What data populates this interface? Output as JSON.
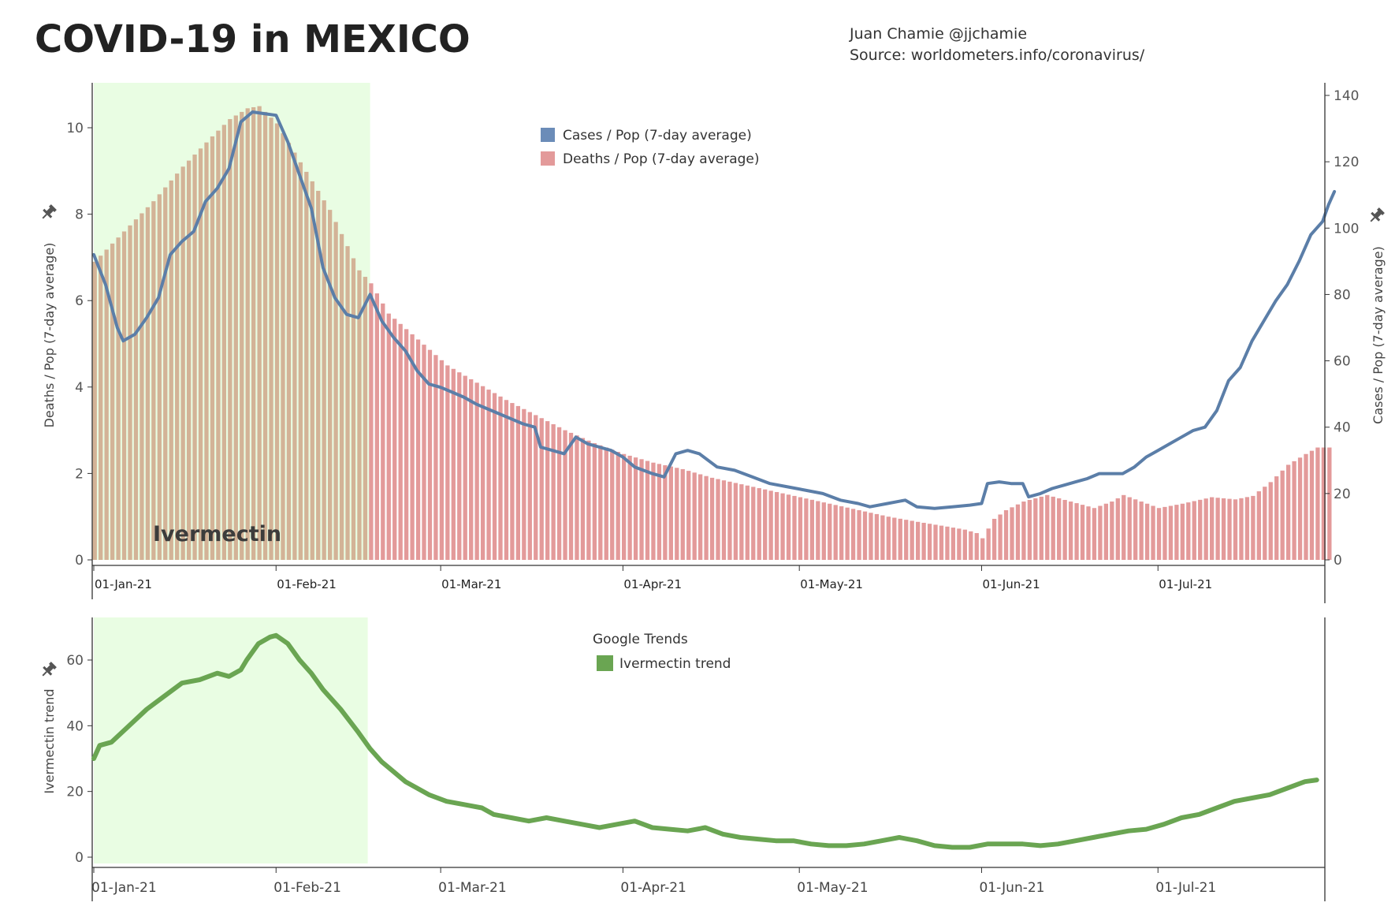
{
  "title": "COVID-19 in MEXICO",
  "credit": {
    "author": "Juan Chamie @jjchamie",
    "source": "Source: worldometers.info/coronavirus/"
  },
  "chart_data": [
    {
      "type": "bar+line",
      "name": "top-panel",
      "x_start": "2021-01-01",
      "x_end": "2021-07-31",
      "x_tick_labels": [
        "01-Jan-21",
        "01-Feb-21",
        "01-Mar-21",
        "01-Apr-21",
        "01-May-21",
        "01-Jun-21",
        "01-Jul-21"
      ],
      "x_tick_days": [
        0,
        31,
        59,
        90,
        120,
        151,
        181
      ],
      "highlight": {
        "label": "Ivermectin",
        "start_day": 0,
        "end_day": 47,
        "color": "#e9fde3"
      },
      "y_left": {
        "label": "Deaths / Pop (7-day average)",
        "range": [
          0,
          11
        ],
        "ticks": [
          0,
          2,
          4,
          6,
          8,
          10
        ]
      },
      "y_right": {
        "label": "Cases / Pop (7-day average)",
        "range": [
          0,
          142.5
        ],
        "ticks": [
          0,
          20,
          40,
          60,
          80,
          100,
          120,
          140
        ]
      },
      "legend": [
        {
          "label": "Cases / Pop (7-day average)",
          "color": "#6b8cb8"
        },
        {
          "label": "Deaths / Pop (7-day average)",
          "color": "#e39a9a"
        }
      ],
      "series": [
        {
          "name": "Deaths / Pop (7-day average)",
          "axis": "left",
          "type": "bar",
          "color": "#e39a9a",
          "highlight_color": "#d3b397",
          "points": [
            [
              0,
              6.9
            ],
            [
              5,
              7.6
            ],
            [
              10,
              8.3
            ],
            [
              15,
              9.1
            ],
            [
              20,
              9.8
            ],
            [
              23,
              10.2
            ],
            [
              26,
              10.45
            ],
            [
              28,
              10.5
            ],
            [
              31,
              10.1
            ],
            [
              35,
              9.2
            ],
            [
              40,
              8.1
            ],
            [
              45,
              6.7
            ],
            [
              47,
              6.4
            ],
            [
              50,
              5.7
            ],
            [
              55,
              5.1
            ],
            [
              60,
              4.5
            ],
            [
              65,
              4.1
            ],
            [
              70,
              3.7
            ],
            [
              75,
              3.35
            ],
            [
              80,
              3.0
            ],
            [
              85,
              2.7
            ],
            [
              90,
              2.45
            ],
            [
              95,
              2.25
            ],
            [
              100,
              2.1
            ],
            [
              105,
              1.9
            ],
            [
              110,
              1.75
            ],
            [
              115,
              1.6
            ],
            [
              120,
              1.45
            ],
            [
              125,
              1.3
            ],
            [
              130,
              1.15
            ],
            [
              135,
              1.0
            ],
            [
              140,
              0.88
            ],
            [
              145,
              0.77
            ],
            [
              148,
              0.7
            ],
            [
              150,
              0.62
            ],
            [
              151,
              0.5
            ],
            [
              153,
              0.95
            ],
            [
              155,
              1.15
            ],
            [
              158,
              1.35
            ],
            [
              162,
              1.5
            ],
            [
              166,
              1.35
            ],
            [
              170,
              1.2
            ],
            [
              173,
              1.35
            ],
            [
              175,
              1.5
            ],
            [
              178,
              1.35
            ],
            [
              181,
              1.2
            ],
            [
              185,
              1.3
            ],
            [
              190,
              1.45
            ],
            [
              194,
              1.4
            ],
            [
              197,
              1.48
            ],
            [
              200,
              1.8
            ],
            [
              203,
              2.2
            ],
            [
              206,
              2.45
            ],
            [
              208,
              2.6
            ],
            [
              210,
              2.6
            ]
          ]
        },
        {
          "name": "Cases / Pop (7-day average)",
          "axis": "right",
          "type": "line",
          "color": "#5b7ea8",
          "points": [
            [
              0,
              92
            ],
            [
              2,
              83
            ],
            [
              4,
              70
            ],
            [
              5,
              66
            ],
            [
              7,
              68
            ],
            [
              9,
              73
            ],
            [
              11,
              79
            ],
            [
              13,
              92
            ],
            [
              15,
              96
            ],
            [
              17,
              99
            ],
            [
              19,
              108
            ],
            [
              21,
              112
            ],
            [
              23,
              118
            ],
            [
              25,
              132
            ],
            [
              27,
              135
            ],
            [
              29,
              134.5
            ],
            [
              31,
              134
            ],
            [
              33,
              126
            ],
            [
              35,
              116
            ],
            [
              37,
              106
            ],
            [
              39,
              88
            ],
            [
              41,
              79
            ],
            [
              43,
              74
            ],
            [
              45,
              73
            ],
            [
              47,
              80
            ],
            [
              49,
              72
            ],
            [
              51,
              67
            ],
            [
              53,
              63
            ],
            [
              55,
              57
            ],
            [
              57,
              53
            ],
            [
              59,
              52
            ],
            [
              61,
              50.5
            ],
            [
              63,
              49
            ],
            [
              65,
              47
            ],
            [
              67,
              45.5
            ],
            [
              69,
              44
            ],
            [
              71,
              42.5
            ],
            [
              73,
              41
            ],
            [
              75,
              40
            ],
            [
              76,
              34
            ],
            [
              78,
              33
            ],
            [
              80,
              32
            ],
            [
              82,
              37
            ],
            [
              84,
              35
            ],
            [
              86,
              34
            ],
            [
              88,
              33
            ],
            [
              90,
              31
            ],
            [
              92,
              28
            ],
            [
              95,
              26
            ],
            [
              97,
              25
            ],
            [
              99,
              32
            ],
            [
              101,
              33
            ],
            [
              103,
              32
            ],
            [
              106,
              28
            ],
            [
              109,
              27
            ],
            [
              112,
              25
            ],
            [
              115,
              23
            ],
            [
              118,
              22
            ],
            [
              121,
              21
            ],
            [
              124,
              20
            ],
            [
              127,
              18
            ],
            [
              130,
              17
            ],
            [
              132,
              16
            ],
            [
              135,
              17
            ],
            [
              138,
              18
            ],
            [
              140,
              16
            ],
            [
              143,
              15.5
            ],
            [
              146,
              16
            ],
            [
              149,
              16.5
            ],
            [
              151,
              17
            ],
            [
              152,
              23
            ],
            [
              154,
              23.5
            ],
            [
              156,
              23
            ],
            [
              158,
              23
            ],
            [
              159,
              19
            ],
            [
              161,
              20
            ],
            [
              163,
              21.5
            ],
            [
              165,
              22.5
            ],
            [
              167,
              23.5
            ],
            [
              169,
              24.5
            ],
            [
              171,
              26
            ],
            [
              173,
              26
            ],
            [
              175,
              26
            ],
            [
              177,
              28
            ],
            [
              179,
              31
            ],
            [
              181,
              33
            ],
            [
              183,
              35
            ],
            [
              185,
              37
            ],
            [
              187,
              39
            ],
            [
              189,
              40
            ],
            [
              191,
              45
            ],
            [
              193,
              54
            ],
            [
              195,
              58
            ],
            [
              197,
              66
            ],
            [
              199,
              72
            ],
            [
              201,
              78
            ],
            [
              203,
              83
            ],
            [
              205,
              90
            ],
            [
              207,
              98
            ],
            [
              209,
              102
            ],
            [
              210,
              107
            ],
            [
              211,
              111
            ]
          ]
        }
      ]
    },
    {
      "type": "line",
      "name": "bottom-panel",
      "x_start": "2021-01-01",
      "x_end": "2021-07-31",
      "x_tick_labels": [
        "01-Jan-21",
        "01-Feb-21",
        "01-Mar-21",
        "01-Apr-21",
        "01-May-21",
        "01-Jun-21",
        "01-Jul-21"
      ],
      "x_tick_days": [
        0,
        31,
        59,
        90,
        120,
        151,
        181
      ],
      "highlight": {
        "start_day": 0,
        "end_day": 47,
        "color": "#e9fde3"
      },
      "y_left": {
        "label": "Ivermectin trend",
        "range": [
          -3,
          70
        ],
        "ticks": [
          0,
          20,
          40,
          60
        ]
      },
      "legend_title": "Google Trends",
      "legend": [
        {
          "label": "Ivermectin trend",
          "color": "#6aa552"
        }
      ],
      "series": [
        {
          "name": "Ivermectin trend",
          "color": "#6aa552",
          "points": [
            [
              0,
              30
            ],
            [
              1,
              34
            ],
            [
              3,
              35
            ],
            [
              6,
              40
            ],
            [
              9,
              45
            ],
            [
              12,
              49
            ],
            [
              15,
              53
            ],
            [
              18,
              54
            ],
            [
              21,
              56
            ],
            [
              23,
              55
            ],
            [
              25,
              57
            ],
            [
              26,
              60
            ],
            [
              28,
              65
            ],
            [
              30,
              67
            ],
            [
              31,
              67.5
            ],
            [
              33,
              65
            ],
            [
              35,
              60
            ],
            [
              37,
              56
            ],
            [
              39,
              51
            ],
            [
              42,
              45
            ],
            [
              45,
              38
            ],
            [
              47,
              33
            ],
            [
              49,
              29
            ],
            [
              51,
              26
            ],
            [
              53,
              23
            ],
            [
              55,
              21
            ],
            [
              57,
              19
            ],
            [
              60,
              17
            ],
            [
              63,
              16
            ],
            [
              66,
              15
            ],
            [
              68,
              13
            ],
            [
              71,
              12
            ],
            [
              74,
              11
            ],
            [
              77,
              12
            ],
            [
              80,
              11
            ],
            [
              83,
              10
            ],
            [
              86,
              9
            ],
            [
              89,
              10
            ],
            [
              92,
              11
            ],
            [
              95,
              9
            ],
            [
              98,
              8.5
            ],
            [
              101,
              8
            ],
            [
              104,
              9
            ],
            [
              107,
              7
            ],
            [
              110,
              6
            ],
            [
              113,
              5.5
            ],
            [
              116,
              5
            ],
            [
              119,
              5
            ],
            [
              122,
              4
            ],
            [
              125,
              3.5
            ],
            [
              128,
              3.5
            ],
            [
              131,
              4
            ],
            [
              134,
              5
            ],
            [
              137,
              6
            ],
            [
              140,
              5
            ],
            [
              143,
              3.5
            ],
            [
              146,
              3
            ],
            [
              149,
              3
            ],
            [
              152,
              4
            ],
            [
              155,
              4
            ],
            [
              158,
              4
            ],
            [
              161,
              3.5
            ],
            [
              164,
              4
            ],
            [
              167,
              5
            ],
            [
              170,
              6
            ],
            [
              173,
              7
            ],
            [
              176,
              8
            ],
            [
              179,
              8.5
            ],
            [
              182,
              10
            ],
            [
              185,
              12
            ],
            [
              188,
              13
            ],
            [
              191,
              15
            ],
            [
              194,
              17
            ],
            [
              197,
              18
            ],
            [
              200,
              19
            ],
            [
              203,
              21
            ],
            [
              206,
              23
            ],
            [
              208,
              23.5
            ]
          ]
        }
      ]
    }
  ]
}
